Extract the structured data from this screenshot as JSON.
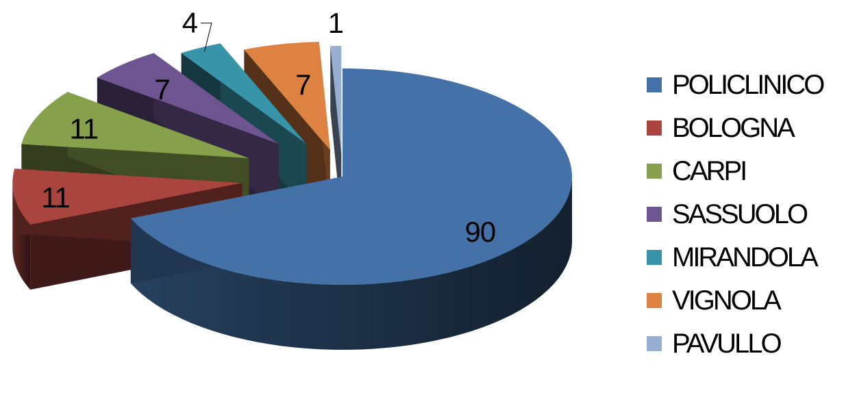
{
  "chart_data": {
    "type": "pie",
    "categories": [
      "POLICLINICO",
      "BOLOGNA",
      "CARPI",
      "SASSUOLO",
      "MIRANDOLA",
      "VIGNOLA",
      "PAVULLO"
    ],
    "values": [
      90,
      11,
      11,
      7,
      4,
      7,
      1
    ],
    "colors": [
      "#4472A8",
      "#A9443F",
      "#87A04B",
      "#6E5490",
      "#3894A8",
      "#DD8240",
      "#98AFD4"
    ],
    "legend_position": "right",
    "style": "3d-exploded"
  }
}
